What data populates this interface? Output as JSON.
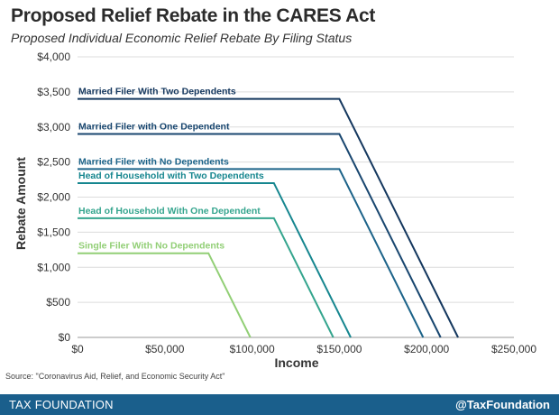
{
  "header": {
    "title": "Proposed Relief Rebate in the CARES Act",
    "subtitle": "Proposed Individual Economic Relief Rebate By Filing Status"
  },
  "footer": {
    "source": "Source: \"Coronavirus Aid, Relief, and Economic Security Act\"",
    "brand": "TAX FOUNDATION",
    "handle": "@TaxFoundation",
    "color": "#1a5f8c"
  },
  "chart_data": {
    "type": "line",
    "xlabel": "Income",
    "ylabel": "Rebate Amount",
    "xlim": [
      0,
      250000
    ],
    "ylim": [
      0,
      4000
    ],
    "x_ticks": [
      0,
      50000,
      100000,
      150000,
      200000,
      250000
    ],
    "x_tick_labels": [
      "$0",
      "$50,000",
      "$100,000",
      "$150,000",
      "$200,000",
      "$250,000"
    ],
    "y_ticks": [
      0,
      500,
      1000,
      1500,
      2000,
      2500,
      3000,
      3500,
      4000
    ],
    "y_tick_labels": [
      "$0",
      "$500",
      "$1,000",
      "$1,500",
      "$2,000",
      "$2,500",
      "$3,000",
      "$3,500",
      "$4,000"
    ],
    "grid": "horizontal",
    "series": [
      {
        "name": "Married Filer With Two Dependents",
        "color": "#14375e",
        "points": [
          [
            0,
            3400
          ],
          [
            150000,
            3400
          ],
          [
            218000,
            0
          ]
        ]
      },
      {
        "name": "Married Filer with One Dependent",
        "color": "#18466f",
        "points": [
          [
            0,
            2900
          ],
          [
            150000,
            2900
          ],
          [
            208000,
            0
          ]
        ]
      },
      {
        "name": "Married Filer with No Dependents",
        "color": "#1c6389",
        "points": [
          [
            0,
            2400
          ],
          [
            150000,
            2400
          ],
          [
            198000,
            0
          ]
        ]
      },
      {
        "name": "Head of Household with Two Dependents",
        "color": "#16868f",
        "points": [
          [
            0,
            2200
          ],
          [
            112500,
            2200
          ],
          [
            156500,
            0
          ]
        ]
      },
      {
        "name": "Head of Household With One Dependent",
        "color": "#35a58e",
        "points": [
          [
            0,
            1700
          ],
          [
            112500,
            1700
          ],
          [
            146500,
            0
          ]
        ]
      },
      {
        "name": "Single Filer With No Dependents",
        "color": "#92cf76",
        "points": [
          [
            0,
            1200
          ],
          [
            75000,
            1200
          ],
          [
            99000,
            0
          ]
        ]
      }
    ]
  }
}
